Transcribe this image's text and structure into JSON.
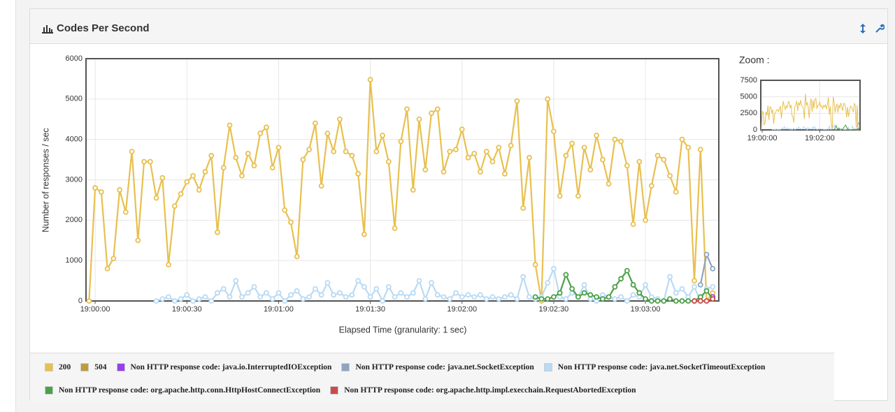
{
  "chart_data": {
    "type": "line",
    "title": "Codes Per Second",
    "y_label": "Number of responses / sec",
    "x_label": "Elapsed Time (granularity: 1 sec)",
    "xlim": [
      "18:59:57",
      "19:03:24"
    ],
    "xticks": [
      "19:00:00",
      "19:00:30",
      "19:01:00",
      "19:01:30",
      "19:02:00",
      "19:02:30",
      "19:03:00"
    ],
    "ylim": [
      0,
      6000
    ],
    "yticks": [
      0,
      1000,
      2000,
      3000,
      4000,
      5000,
      6000
    ],
    "grid": true,
    "x": [
      "18:59:58",
      "19:00:00",
      "19:00:02",
      "19:00:04",
      "19:00:06",
      "19:00:08",
      "19:00:10",
      "19:00:12",
      "19:00:14",
      "19:00:16",
      "19:00:18",
      "19:00:20",
      "19:00:22",
      "19:00:24",
      "19:00:26",
      "19:00:28",
      "19:00:30",
      "19:00:32",
      "19:00:34",
      "19:00:36",
      "19:00:38",
      "19:00:40",
      "19:00:42",
      "19:00:44",
      "19:00:46",
      "19:00:48",
      "19:00:50",
      "19:00:52",
      "19:00:54",
      "19:00:56",
      "19:00:58",
      "19:01:00",
      "19:01:02",
      "19:01:04",
      "19:01:06",
      "19:01:08",
      "19:01:10",
      "19:01:12",
      "19:01:14",
      "19:01:16",
      "19:01:18",
      "19:01:20",
      "19:01:22",
      "19:01:24",
      "19:01:26",
      "19:01:28",
      "19:01:30",
      "19:01:32",
      "19:01:34",
      "19:01:36",
      "19:01:38",
      "19:01:40",
      "19:01:42",
      "19:01:44",
      "19:01:46",
      "19:01:48",
      "19:01:50",
      "19:01:52",
      "19:01:54",
      "19:01:56",
      "19:01:58",
      "19:02:00",
      "19:02:02",
      "19:02:04",
      "19:02:06",
      "19:02:08",
      "19:02:10",
      "19:02:12",
      "19:02:14",
      "19:02:16",
      "19:02:18",
      "19:02:20",
      "19:02:22",
      "19:02:24",
      "19:02:26",
      "19:02:28",
      "19:02:30",
      "19:02:32",
      "19:02:34",
      "19:02:36",
      "19:02:38",
      "19:02:40",
      "19:02:42",
      "19:02:44",
      "19:02:46",
      "19:02:48",
      "19:02:50",
      "19:02:52",
      "19:02:54",
      "19:02:56",
      "19:02:58",
      "19:03:00",
      "19:03:02",
      "19:03:04",
      "19:03:06",
      "19:03:08",
      "19:03:10",
      "19:03:12",
      "19:03:14",
      "19:03:16",
      "19:03:18",
      "19:03:20",
      "19:03:22"
    ],
    "series": [
      {
        "name": "200",
        "color": "#e8c04f",
        "values": [
          0,
          2800,
          2700,
          800,
          1050,
          2750,
          2200,
          3700,
          1500,
          3450,
          3450,
          2550,
          3050,
          900,
          2350,
          2650,
          2950,
          3100,
          2750,
          3200,
          3600,
          1700,
          3300,
          4350,
          3550,
          3100,
          3650,
          3350,
          4150,
          4300,
          3300,
          3800,
          2250,
          1950,
          1100,
          3500,
          3750,
          4400,
          2850,
          4150,
          3700,
          4500,
          3700,
          3600,
          3150,
          1650,
          5480,
          3700,
          4100,
          3450,
          1800,
          3950,
          4750,
          2750,
          4500,
          3250,
          4650,
          4750,
          3200,
          3700,
          3750,
          4250,
          3550,
          3650,
          3200,
          3700,
          3450,
          3800,
          3150,
          3850,
          4950,
          2300,
          3550,
          900,
          0,
          5000,
          4200,
          2600,
          3600,
          3900,
          2600,
          3800,
          3250,
          4100,
          3500,
          2900,
          4000,
          3950,
          3350,
          1900,
          3450,
          2000,
          2850,
          3600,
          3500,
          3100,
          2700,
          4000,
          3800,
          500,
          3750,
          0,
          200
        ]
      },
      {
        "name": "504",
        "color": "#bf9b3e",
        "values": [
          null,
          null,
          null,
          null,
          null,
          null,
          null,
          null,
          null,
          null,
          null,
          null,
          null,
          null,
          null,
          null,
          null,
          null,
          null,
          null,
          null,
          null,
          null,
          null,
          null,
          null,
          null,
          null,
          null,
          null,
          null,
          null,
          null,
          null,
          null,
          null,
          null,
          null,
          null,
          null,
          null,
          null,
          null,
          null,
          null,
          null,
          null,
          null,
          null,
          null,
          null,
          null,
          null,
          null,
          null,
          null,
          null,
          null,
          null,
          null,
          null,
          null,
          null,
          null,
          null,
          null,
          null,
          null,
          null,
          null,
          null,
          null,
          null,
          null,
          null,
          null,
          null,
          null,
          null,
          null,
          null,
          null,
          null,
          null,
          null,
          null,
          null,
          null,
          null,
          null,
          null,
          null,
          null,
          null,
          null,
          null,
          null,
          null,
          null,
          null,
          null,
          null,
          null
        ]
      },
      {
        "name": "Non HTTP response code: java.io.InterruptedIOException",
        "color": "#9440ed",
        "values": [
          null,
          null,
          null,
          null,
          null,
          null,
          null,
          null,
          null,
          null,
          null,
          null,
          null,
          null,
          null,
          null,
          null,
          null,
          null,
          null,
          null,
          null,
          null,
          null,
          null,
          null,
          null,
          null,
          null,
          null,
          null,
          null,
          null,
          null,
          null,
          null,
          null,
          null,
          null,
          null,
          null,
          null,
          null,
          null,
          null,
          null,
          null,
          null,
          null,
          null,
          null,
          null,
          null,
          null,
          null,
          null,
          null,
          null,
          null,
          null,
          null,
          null,
          null,
          null,
          null,
          null,
          null,
          null,
          null,
          null,
          null,
          null,
          null,
          null,
          null,
          null,
          null,
          null,
          null,
          null,
          null,
          null,
          null,
          null,
          null,
          null,
          null,
          null,
          null,
          null,
          null,
          null,
          null,
          null,
          null,
          null,
          null,
          null,
          null,
          null,
          null,
          null,
          100
        ]
      },
      {
        "name": "Non HTTP response code: java.net.SocketException",
        "color": "#8ea5c0",
        "values": [
          null,
          null,
          null,
          null,
          null,
          null,
          null,
          null,
          null,
          null,
          null,
          null,
          null,
          null,
          null,
          null,
          null,
          null,
          null,
          null,
          null,
          null,
          null,
          null,
          null,
          null,
          null,
          null,
          null,
          null,
          null,
          null,
          null,
          null,
          null,
          null,
          null,
          null,
          null,
          null,
          null,
          null,
          null,
          null,
          null,
          null,
          null,
          null,
          null,
          null,
          null,
          null,
          null,
          null,
          null,
          null,
          null,
          null,
          null,
          null,
          null,
          null,
          null,
          null,
          null,
          null,
          null,
          null,
          null,
          null,
          null,
          null,
          null,
          null,
          null,
          null,
          null,
          null,
          null,
          null,
          null,
          null,
          null,
          null,
          null,
          null,
          null,
          null,
          null,
          null,
          null,
          null,
          null,
          null,
          null,
          null,
          null,
          null,
          null,
          null,
          400,
          1150,
          800
        ]
      },
      {
        "name": "Non HTTP response code: java.net.SocketTimeoutException",
        "color": "#b9daf4",
        "values": [
          null,
          null,
          null,
          null,
          null,
          null,
          null,
          null,
          null,
          null,
          null,
          0,
          50,
          100,
          0,
          50,
          150,
          0,
          50,
          100,
          0,
          200,
          300,
          100,
          500,
          100,
          200,
          350,
          100,
          200,
          50,
          200,
          0,
          150,
          250,
          50,
          100,
          300,
          150,
          450,
          150,
          200,
          100,
          150,
          500,
          350,
          100,
          300,
          0,
          350,
          100,
          200,
          100,
          200,
          500,
          50,
          450,
          150,
          100,
          50,
          200,
          100,
          150,
          100,
          150,
          50,
          100,
          50,
          100,
          150,
          50,
          600,
          100,
          50,
          100,
          450,
          800,
          100,
          50,
          200,
          100,
          400,
          50,
          0,
          150,
          100,
          50,
          100,
          0,
          150,
          100,
          400,
          100,
          50,
          0,
          600,
          200,
          300,
          100,
          350,
          0,
          300,
          350
        ]
      },
      {
        "name": "Non HTTP response code: org.apache.http.conn.HttpHostConnectException",
        "color": "#4ca04a",
        "values": [
          null,
          null,
          null,
          null,
          null,
          null,
          null,
          null,
          null,
          null,
          null,
          null,
          null,
          null,
          null,
          null,
          null,
          null,
          null,
          null,
          null,
          null,
          null,
          null,
          null,
          null,
          null,
          null,
          null,
          null,
          null,
          null,
          null,
          null,
          null,
          null,
          null,
          null,
          null,
          null,
          null,
          null,
          null,
          null,
          null,
          null,
          null,
          null,
          null,
          null,
          null,
          null,
          null,
          null,
          null,
          null,
          null,
          null,
          null,
          null,
          null,
          null,
          null,
          null,
          null,
          null,
          null,
          null,
          null,
          null,
          null,
          null,
          null,
          100,
          50,
          50,
          100,
          200,
          650,
          300,
          100,
          200,
          150,
          100,
          50,
          100,
          350,
          550,
          750,
          400,
          200,
          50,
          0,
          0,
          0,
          50,
          0,
          0,
          0,
          0,
          100,
          250,
          50
        ]
      },
      {
        "name": "Non HTTP response code: org.apache.http.impl.execchain.RequestAbortedException",
        "color": "#cb4b4b",
        "values": [
          null,
          null,
          null,
          null,
          null,
          null,
          null,
          null,
          null,
          null,
          null,
          null,
          null,
          null,
          null,
          null,
          null,
          null,
          null,
          null,
          null,
          null,
          null,
          null,
          null,
          null,
          null,
          null,
          null,
          null,
          null,
          null,
          null,
          null,
          null,
          null,
          null,
          null,
          null,
          null,
          null,
          null,
          null,
          null,
          null,
          null,
          null,
          null,
          null,
          null,
          null,
          null,
          null,
          null,
          null,
          null,
          null,
          null,
          null,
          null,
          null,
          null,
          null,
          null,
          null,
          null,
          null,
          null,
          null,
          null,
          null,
          null,
          null,
          null,
          null,
          null,
          null,
          null,
          null,
          null,
          null,
          null,
          null,
          null,
          null,
          null,
          null,
          null,
          null,
          null,
          null,
          null,
          null,
          null,
          null,
          null,
          null,
          null,
          null,
          0,
          0,
          0,
          50
        ]
      }
    ],
    "overview": {
      "title": "Zoom :",
      "ylim": [
        0,
        7500
      ],
      "yticks": [
        0,
        2500,
        5000,
        7500
      ],
      "xticks": [
        "19:00:00",
        "19:02:00"
      ]
    }
  }
}
